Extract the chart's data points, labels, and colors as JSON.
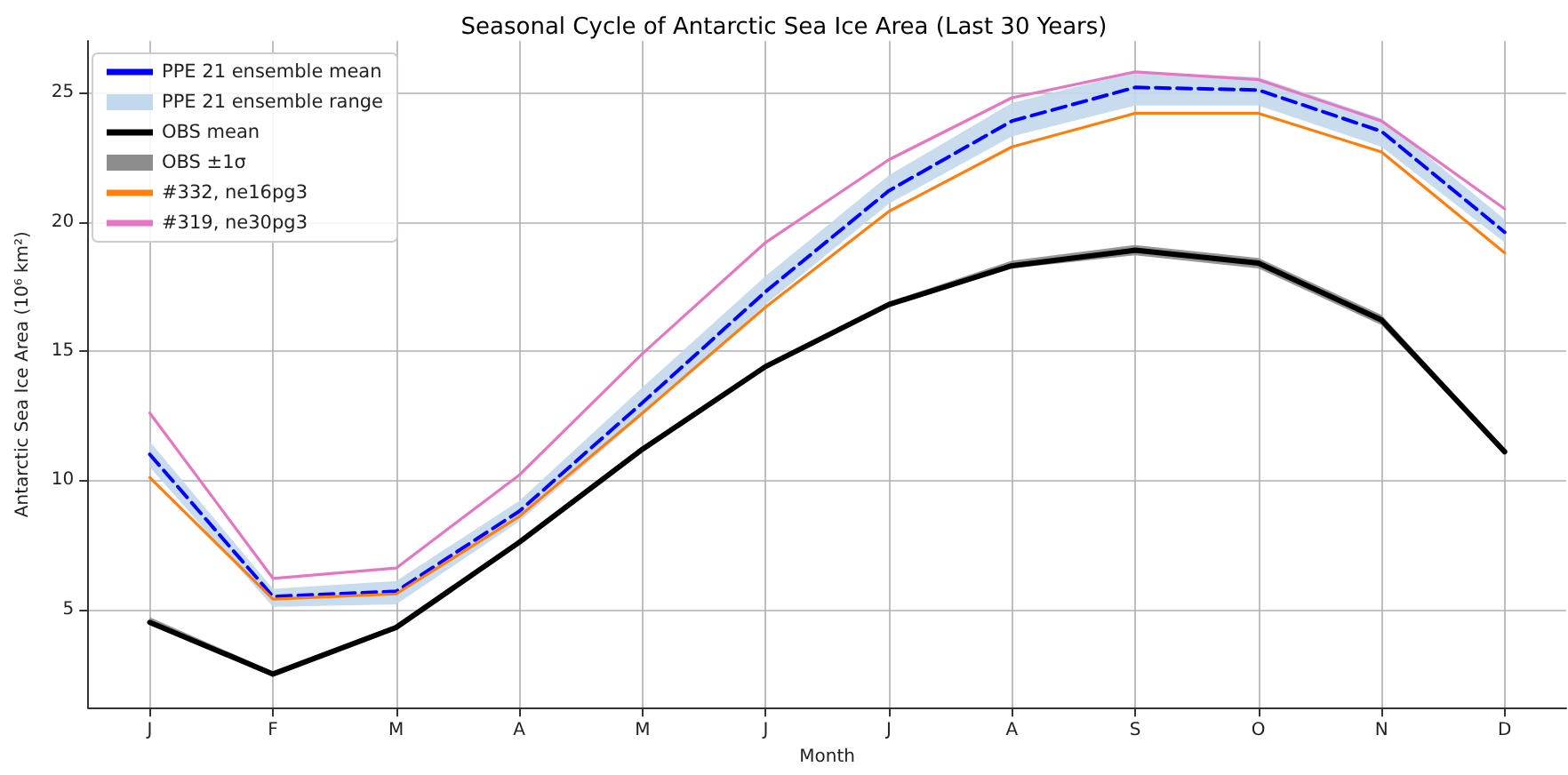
{
  "chart_data": {
    "type": "line",
    "title": "Seasonal Cycle of Antarctic Sea Ice Area (Last 30 Years)",
    "xlabel": "Month",
    "ylabel": "Antarctic Sea Ice Area (10⁶ km²)",
    "categories": [
      "J",
      "F",
      "M",
      "A",
      "M",
      "J",
      "J",
      "A",
      "S",
      "O",
      "N",
      "D"
    ],
    "series": [
      {
        "name": "PPE 21 ensemble mean",
        "color": "#0000ff",
        "line_style": "dashed",
        "values": [
          11.0,
          5.5,
          5.7,
          8.8,
          13.0,
          17.3,
          21.2,
          23.9,
          25.2,
          25.1,
          23.5,
          19.6
        ]
      },
      {
        "name": "PPE 21 ensemble range",
        "type": "area",
        "color": "#c2d8ec",
        "values": [
          null,
          null,
          null,
          null,
          null,
          null,
          null,
          null,
          null,
          null,
          null,
          null
        ],
        "lower": [
          10.5,
          5.1,
          5.2,
          8.4,
          12.5,
          16.8,
          20.7,
          23.3,
          24.5,
          24.5,
          22.9,
          19.2
        ],
        "upper": [
          11.5,
          5.8,
          6.1,
          9.2,
          13.6,
          17.9,
          21.8,
          24.6,
          25.8,
          25.6,
          24.0,
          20.1
        ]
      },
      {
        "name": "OBS mean",
        "color": "#000000",
        "line_style": "solid",
        "values": [
          4.5,
          2.5,
          4.3,
          7.6,
          11.2,
          14.4,
          16.8,
          18.3,
          18.9,
          18.4,
          16.2,
          11.1
        ]
      },
      {
        "name": "OBS ±1σ",
        "type": "area",
        "color": "#8c8c8c",
        "values": [
          null,
          null,
          null,
          null,
          null,
          null,
          null,
          null,
          null,
          null,
          null,
          null
        ],
        "lower": [
          4.4,
          2.4,
          4.2,
          7.5,
          11.1,
          14.3,
          16.7,
          18.2,
          18.7,
          18.2,
          16.0,
          11.0
        ],
        "upper": [
          4.7,
          2.6,
          4.4,
          7.7,
          11.3,
          14.5,
          16.9,
          18.5,
          19.1,
          18.6,
          16.4,
          11.2
        ]
      },
      {
        "name": "#332, ne16pg3",
        "color": "#ff7f0e",
        "line_style": "solid",
        "values": [
          10.1,
          5.4,
          5.6,
          8.6,
          12.6,
          16.7,
          20.4,
          22.9,
          24.2,
          24.2,
          22.7,
          18.8
        ]
      },
      {
        "name": "#319, ne30pg3",
        "color": "#e377c2",
        "line_style": "solid",
        "values": [
          12.6,
          6.2,
          6.6,
          10.2,
          14.9,
          19.2,
          22.4,
          24.8,
          25.8,
          25.5,
          23.9,
          20.5
        ]
      }
    ],
    "ylim": [
      1.2,
      27
    ],
    "yticks": [
      5,
      10,
      15,
      20,
      25
    ],
    "grid": true,
    "legend": "top left"
  }
}
